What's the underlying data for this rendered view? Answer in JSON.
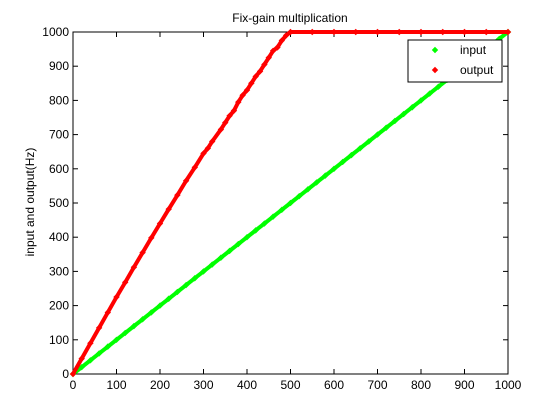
{
  "chart_data": {
    "type": "scatter",
    "title": "Fix-gain multiplication",
    "xlabel": "",
    "ylabel": "input and output(Hz)",
    "xlim": [
      0,
      1000
    ],
    "ylim": [
      0,
      1000
    ],
    "xticks": [
      0,
      100,
      200,
      300,
      400,
      500,
      600,
      700,
      800,
      900,
      1000
    ],
    "yticks": [
      0,
      100,
      200,
      300,
      400,
      500,
      600,
      700,
      800,
      900,
      1000
    ],
    "grid": false,
    "legend_position": "top-right",
    "series": [
      {
        "name": "input",
        "color": "#00ff00",
        "marker": "diamond",
        "description_gain": 1.0,
        "x": [
          0,
          20,
          40,
          60,
          80,
          100,
          120,
          140,
          160,
          180,
          200,
          220,
          240,
          260,
          280,
          300,
          320,
          340,
          360,
          380,
          400,
          420,
          440,
          460,
          480,
          500,
          520,
          540,
          560,
          580,
          600,
          620,
          640,
          660,
          680,
          700,
          720,
          740,
          760,
          780,
          800,
          820,
          840,
          860,
          880,
          900,
          920,
          940,
          960,
          980,
          1000
        ],
        "y": [
          0,
          20,
          40,
          60,
          80,
          100,
          120,
          140,
          160,
          180,
          200,
          220,
          240,
          260,
          280,
          300,
          320,
          340,
          360,
          380,
          400,
          420,
          440,
          460,
          480,
          500,
          520,
          540,
          560,
          580,
          600,
          620,
          640,
          660,
          680,
          700,
          720,
          740,
          760,
          780,
          800,
          820,
          840,
          860,
          880,
          900,
          920,
          940,
          960,
          980,
          1000
        ]
      },
      {
        "name": "output",
        "color": "#ff0000",
        "marker": "diamond",
        "x": [
          0,
          20,
          40,
          60,
          80,
          100,
          120,
          140,
          160,
          180,
          200,
          220,
          240,
          260,
          280,
          300,
          310,
          320,
          340,
          350,
          360,
          370,
          380,
          390,
          400,
          410,
          420,
          430,
          440,
          450,
          460,
          470,
          480,
          490,
          500,
          550,
          600,
          650,
          700,
          750,
          800,
          850,
          900,
          950,
          1000
        ],
        "y": [
          0,
          45,
          90,
          135,
          180,
          225,
          268,
          312,
          355,
          398,
          440,
          482,
          523,
          565,
          604,
          645,
          660,
          680,
          715,
          735,
          755,
          770,
          795,
          815,
          830,
          850,
          870,
          885,
          905,
          925,
          945,
          955,
          975,
          990,
          1000,
          1000,
          1000,
          1000,
          1000,
          1000,
          1000,
          1000,
          1000,
          1000,
          1000
        ]
      }
    ]
  }
}
